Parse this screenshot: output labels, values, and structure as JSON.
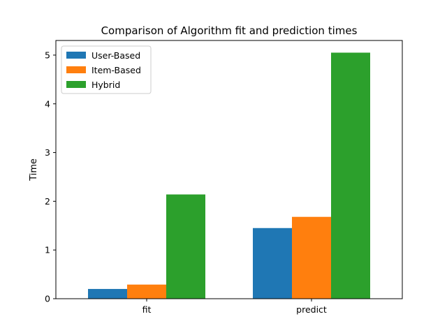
{
  "chart_data": {
    "type": "bar",
    "title": "Comparison of Algorithm fit and prediction times",
    "xlabel": "",
    "ylabel": "Time",
    "categories": [
      "fit",
      "predict"
    ],
    "series": [
      {
        "name": "User-Based",
        "values": [
          0.2,
          1.45
        ],
        "color": "#1f77b4"
      },
      {
        "name": "Item-Based",
        "values": [
          0.29,
          1.68
        ],
        "color": "#ff7f0e"
      },
      {
        "name": "Hybrid",
        "values": [
          2.14,
          5.05
        ],
        "color": "#2ca02c"
      }
    ],
    "ylim": [
      0,
      5.3
    ],
    "yticks": [
      "0",
      "1",
      "2",
      "3",
      "4",
      "5"
    ],
    "grid": false,
    "legend_position": "top-left"
  }
}
